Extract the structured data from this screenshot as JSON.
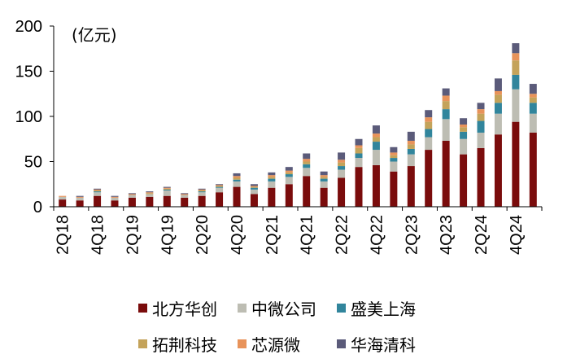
{
  "chart_data": {
    "type": "bar",
    "stacked": true,
    "unit_label": "(亿元)",
    "ylim": [
      0,
      200
    ],
    "yticks": [
      0,
      50,
      100,
      150,
      200
    ],
    "categories": [
      "2Q18",
      "3Q18",
      "4Q18",
      "1Q19",
      "2Q19",
      "3Q19",
      "4Q19",
      "1Q20",
      "2Q20",
      "3Q20",
      "4Q20",
      "1Q21",
      "2Q21",
      "3Q21",
      "4Q21",
      "1Q22",
      "2Q22",
      "3Q22",
      "4Q22",
      "1Q23",
      "2Q23",
      "3Q23",
      "4Q23",
      "1Q24",
      "2Q24",
      "3Q24",
      "4Q24",
      "1Q25"
    ],
    "tick_labels": [
      "2Q18",
      "",
      "4Q18",
      "",
      "2Q19",
      "",
      "4Q19",
      "",
      "2Q20",
      "",
      "4Q20",
      "",
      "2Q21",
      "",
      "4Q21",
      "",
      "2Q22",
      "",
      "4Q22",
      "",
      "2Q23",
      "",
      "4Q23",
      "",
      "2Q24",
      "",
      "4Q24",
      ""
    ],
    "series": [
      {
        "name": "北方华创",
        "color": "#7a0c0c",
        "values": [
          8,
          7,
          12,
          7,
          10,
          11,
          12,
          10,
          12,
          16,
          22,
          14,
          21,
          25,
          34,
          21,
          32,
          44,
          46,
          39,
          45,
          63,
          73,
          58,
          65,
          80,
          94,
          82
        ]
      },
      {
        "name": "中微公司",
        "color": "#bdbdb3",
        "values": [
          3,
          3,
          4,
          3,
          3,
          3,
          6,
          3,
          4,
          5,
          6,
          5,
          7,
          8,
          9,
          7,
          9,
          10,
          17,
          11,
          13,
          14,
          24,
          17,
          17,
          23,
          36,
          21
        ]
      },
      {
        "name": "盛美上海",
        "color": "#31859c",
        "values": [
          0,
          0,
          1,
          0,
          0,
          0,
          1,
          0,
          1,
          1,
          2,
          2,
          3,
          3,
          4,
          3,
          4,
          5,
          9,
          4,
          6,
          9,
          11,
          8,
          13,
          12,
          16,
          12
        ]
      },
      {
        "name": "拓荆科技",
        "color": "#c4a35a",
        "values": [
          0,
          0,
          1,
          0,
          0,
          1,
          1,
          0,
          1,
          1,
          2,
          1,
          2,
          2,
          3,
          2,
          4,
          6,
          5,
          3,
          5,
          8,
          9,
          5,
          8,
          9,
          16,
          6
        ]
      },
      {
        "name": "芯源微",
        "color": "#e8935a",
        "values": [
          1,
          1,
          1,
          1,
          1,
          1,
          1,
          1,
          1,
          1,
          2,
          1,
          2,
          2,
          3,
          2,
          3,
          3,
          4,
          3,
          4,
          5,
          6,
          3,
          5,
          4,
          8,
          4
        ]
      },
      {
        "name": "华海清科",
        "color": "#5b5b7a",
        "values": [
          0,
          1,
          1,
          1,
          1,
          1,
          1,
          1,
          1,
          1,
          3,
          2,
          3,
          4,
          6,
          4,
          8,
          7,
          9,
          6,
          10,
          8,
          8,
          7,
          7,
          14,
          11,
          11
        ]
      }
    ],
    "legend_position": "bottom",
    "grid": false
  }
}
